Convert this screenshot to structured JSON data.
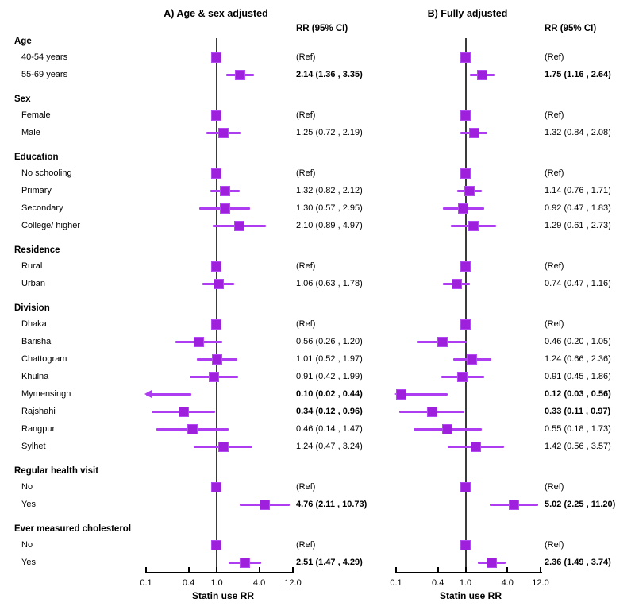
{
  "colors": {
    "marker_fill": "#9e1fdc",
    "marker_border": "#b44af2",
    "ci_line": "#ae3cf0",
    "ref_line": "#3a3a3a",
    "axis": "#000000",
    "text": "#000000"
  },
  "chart_data": {
    "type": "forest",
    "xlabel": "Statin use RR",
    "axis": {
      "scale": "log",
      "min": 0.1,
      "max": 12.0,
      "tick_values": [
        0.1,
        0.4,
        1.0,
        4.0,
        12.0
      ],
      "tick_labels": [
        "0.1",
        "0.4",
        "1.0",
        "4.0",
        "12.0"
      ]
    },
    "panels": [
      {
        "key": "A",
        "title": "A) Age & sex adjusted",
        "col_header": "RR (95% CI)"
      },
      {
        "key": "B",
        "title": "B) Fully adjusted",
        "col_header": "RR (95% CI)"
      }
    ],
    "rows": [
      {
        "type": "section",
        "label": "Age"
      },
      {
        "type": "item",
        "label": "40-54 years",
        "A": {
          "ref": true,
          "text": "(Ref)"
        },
        "B": {
          "ref": true,
          "text": "(Ref)"
        }
      },
      {
        "type": "item",
        "label": "55-69 years",
        "A": {
          "est": 2.14,
          "lo": 1.36,
          "hi": 3.35,
          "text": "2.14 (1.36 , 3.35)",
          "bold": true
        },
        "B": {
          "est": 1.75,
          "lo": 1.16,
          "hi": 2.64,
          "text": "1.75 (1.16 , 2.64)",
          "bold": true
        }
      },
      {
        "type": "section",
        "label": "Sex"
      },
      {
        "type": "item",
        "label": "Female",
        "A": {
          "ref": true,
          "text": "(Ref)"
        },
        "B": {
          "ref": true,
          "text": "(Ref)"
        }
      },
      {
        "type": "item",
        "label": "Male",
        "A": {
          "est": 1.25,
          "lo": 0.72,
          "hi": 2.19,
          "text": "1.25 (0.72 , 2.19)"
        },
        "B": {
          "est": 1.32,
          "lo": 0.84,
          "hi": 2.08,
          "text": "1.32 (0.84 , 2.08)"
        }
      },
      {
        "type": "section",
        "label": "Education"
      },
      {
        "type": "item",
        "label": "No schooling",
        "A": {
          "ref": true,
          "text": "(Ref)"
        },
        "B": {
          "ref": true,
          "text": "(Ref)"
        }
      },
      {
        "type": "item",
        "label": "Primary",
        "A": {
          "est": 1.32,
          "lo": 0.82,
          "hi": 2.12,
          "text": "1.32 (0.82 , 2.12)"
        },
        "B": {
          "est": 1.14,
          "lo": 0.76,
          "hi": 1.71,
          "text": "1.14 (0.76 , 1.71)"
        }
      },
      {
        "type": "item",
        "label": "Secondary",
        "A": {
          "est": 1.3,
          "lo": 0.57,
          "hi": 2.95,
          "text": "1.30 (0.57 , 2.95)"
        },
        "B": {
          "est": 0.92,
          "lo": 0.47,
          "hi": 1.83,
          "text": "0.92 (0.47 , 1.83)"
        }
      },
      {
        "type": "item",
        "label": "College/ higher",
        "A": {
          "est": 2.1,
          "lo": 0.89,
          "hi": 4.97,
          "text": "2.10 (0.89 , 4.97)"
        },
        "B": {
          "est": 1.29,
          "lo": 0.61,
          "hi": 2.73,
          "text": "1.29 (0.61 , 2.73)"
        }
      },
      {
        "type": "section",
        "label": "Residence"
      },
      {
        "type": "item",
        "label": "Rural",
        "A": {
          "ref": true,
          "text": "(Ref)"
        },
        "B": {
          "ref": true,
          "text": "(Ref)"
        }
      },
      {
        "type": "item",
        "label": "Urban",
        "A": {
          "est": 1.06,
          "lo": 0.63,
          "hi": 1.78,
          "text": "1.06 (0.63 , 1.78)"
        },
        "B": {
          "est": 0.74,
          "lo": 0.47,
          "hi": 1.16,
          "text": "0.74 (0.47 , 1.16)"
        }
      },
      {
        "type": "section",
        "label": "Division"
      },
      {
        "type": "item",
        "label": "Dhaka",
        "A": {
          "ref": true,
          "text": "(Ref)"
        },
        "B": {
          "ref": true,
          "text": "(Ref)"
        }
      },
      {
        "type": "item",
        "label": "Barishal",
        "A": {
          "est": 0.56,
          "lo": 0.26,
          "hi": 1.2,
          "text": "0.56 (0.26 , 1.20)"
        },
        "B": {
          "est": 0.46,
          "lo": 0.2,
          "hi": 1.05,
          "text": "0.46 (0.20 , 1.05)"
        }
      },
      {
        "type": "item",
        "label": "Chattogram",
        "A": {
          "est": 1.01,
          "lo": 0.52,
          "hi": 1.97,
          "text": "1.01 (0.52 , 1.97)"
        },
        "B": {
          "est": 1.24,
          "lo": 0.66,
          "hi": 2.36,
          "text": "1.24 (0.66 , 2.36)"
        }
      },
      {
        "type": "item",
        "label": "Khulna",
        "A": {
          "est": 0.91,
          "lo": 0.42,
          "hi": 1.99,
          "text": "0.91 (0.42 , 1.99)"
        },
        "B": {
          "est": 0.91,
          "lo": 0.45,
          "hi": 1.86,
          "text": "0.91 (0.45 , 1.86)"
        }
      },
      {
        "type": "item",
        "label": "Mymensingh",
        "A": {
          "est": 0.1,
          "lo": 0.02,
          "hi": 0.44,
          "text": "0.10 (0.02 , 0.44)",
          "bold": true,
          "arrow": true
        },
        "B": {
          "est": 0.12,
          "lo": 0.03,
          "hi": 0.56,
          "text": "0.12 (0.03 , 0.56)",
          "bold": true,
          "arrow": true
        }
      },
      {
        "type": "item",
        "label": "Rajshahi",
        "A": {
          "est": 0.34,
          "lo": 0.12,
          "hi": 0.96,
          "text": "0.34 (0.12 , 0.96)",
          "bold": true
        },
        "B": {
          "est": 0.33,
          "lo": 0.11,
          "hi": 0.97,
          "text": "0.33 (0.11 , 0.97)",
          "bold": true
        }
      },
      {
        "type": "item",
        "label": "Rangpur",
        "A": {
          "est": 0.46,
          "lo": 0.14,
          "hi": 1.47,
          "text": "0.46 (0.14 , 1.47)"
        },
        "B": {
          "est": 0.55,
          "lo": 0.18,
          "hi": 1.73,
          "text": "0.55 (0.18 , 1.73)"
        }
      },
      {
        "type": "item",
        "label": "Sylhet",
        "A": {
          "est": 1.24,
          "lo": 0.47,
          "hi": 3.24,
          "text": "1.24 (0.47 , 3.24)"
        },
        "B": {
          "est": 1.42,
          "lo": 0.56,
          "hi": 3.57,
          "text": "1.42 (0.56 , 3.57)"
        }
      },
      {
        "type": "section",
        "label": "Regular health visit"
      },
      {
        "type": "item",
        "label": "No",
        "A": {
          "ref": true,
          "text": "(Ref)"
        },
        "B": {
          "ref": true,
          "text": "(Ref)"
        }
      },
      {
        "type": "item",
        "label": "Yes",
        "A": {
          "est": 4.76,
          "lo": 2.11,
          "hi": 10.73,
          "text": "4.76 (2.11 , 10.73)",
          "bold": true
        },
        "B": {
          "est": 5.02,
          "lo": 2.25,
          "hi": 11.2,
          "text": "5.02 (2.25 , 11.20)",
          "bold": true
        }
      },
      {
        "type": "section",
        "label": "Ever measured  cholesterol"
      },
      {
        "type": "item",
        "label": "No",
        "A": {
          "ref": true,
          "text": "(Ref)"
        },
        "B": {
          "ref": true,
          "text": "(Ref)"
        }
      },
      {
        "type": "item",
        "label": "Yes",
        "A": {
          "est": 2.51,
          "lo": 1.47,
          "hi": 4.29,
          "text": "2.51 (1.47 , 4.29)",
          "bold": true
        },
        "B": {
          "est": 2.36,
          "lo": 1.49,
          "hi": 3.74,
          "text": "2.36 (1.49 , 3.74)",
          "bold": true
        }
      }
    ]
  }
}
